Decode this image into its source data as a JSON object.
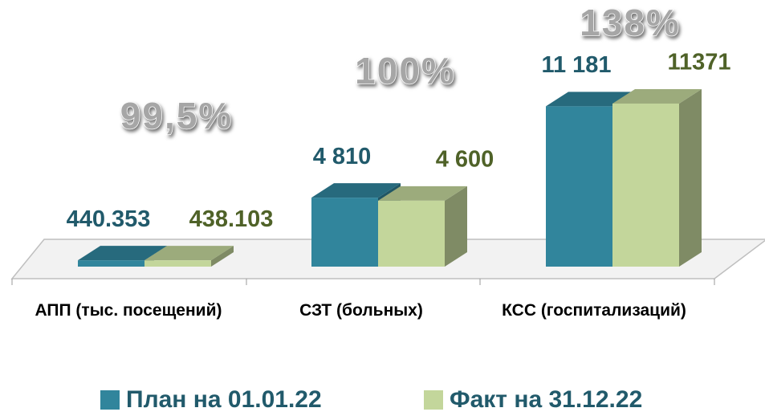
{
  "chart_data": {
    "type": "bar3d",
    "categories": [
      "АПП (тыс. посещений)",
      "СЗТ (больных)",
      "КСС (госпитализаций)"
    ],
    "series": [
      {
        "name": "План на 01.01.22",
        "color": "#31859c",
        "label_color": "#215a6b",
        "values": [
          440.353,
          4810,
          11181
        ],
        "value_labels": [
          "440.353",
          "4 810",
          "11 181"
        ]
      },
      {
        "name": "Факт на 31.12.22",
        "color": "#c3d69b",
        "label_color": "#4f6228",
        "values": [
          438.103,
          4600,
          11371
        ],
        "value_labels": [
          "438.103",
          "4 600",
          "11371"
        ]
      }
    ],
    "annotations": [
      "99,5%",
      "100%",
      "138%"
    ],
    "ylim": [
      0,
      14000
    ]
  }
}
